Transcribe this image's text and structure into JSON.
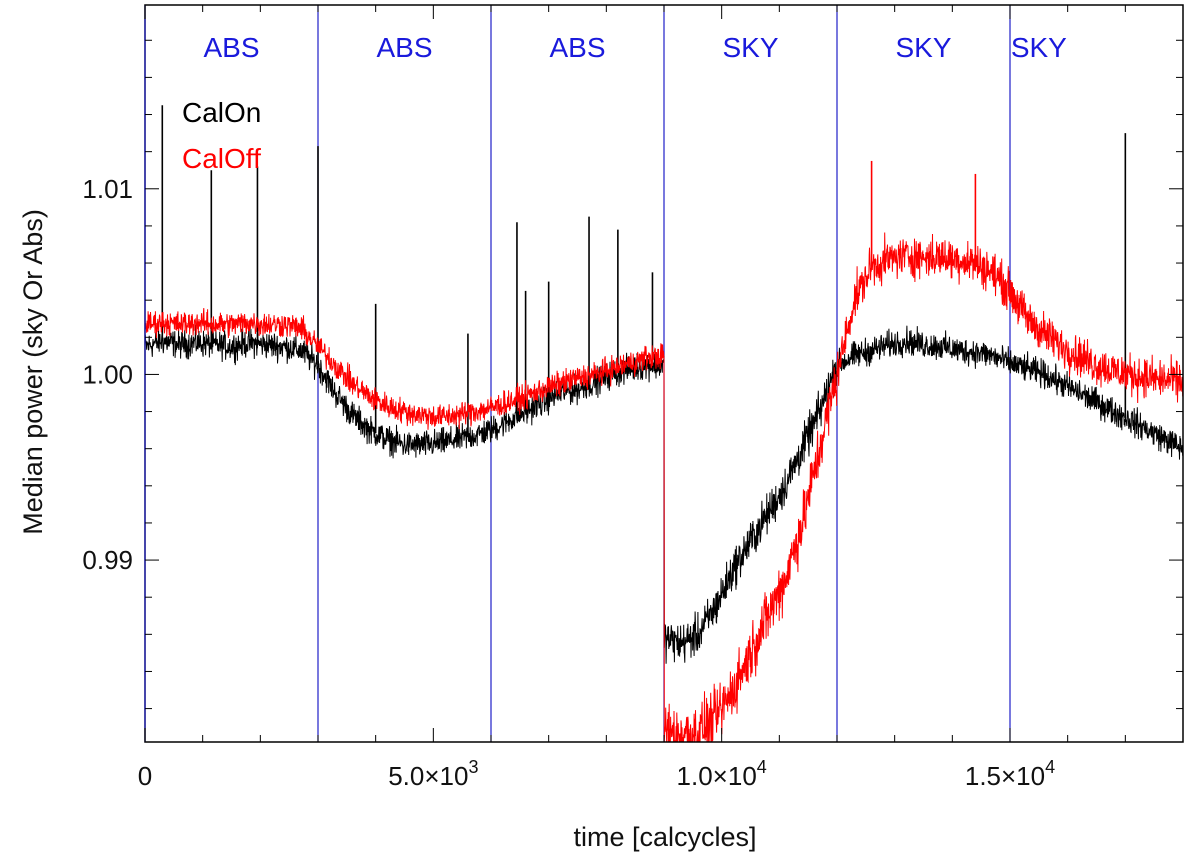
{
  "chart_data": {
    "type": "line",
    "xlabel": "time [calcycles]",
    "ylabel": "Median power (sky Or Abs)",
    "xlim": [
      0,
      18000
    ],
    "ylim": [
      0.9802,
      1.0199
    ],
    "x_ticks": [
      {
        "value": 0,
        "label": "0"
      },
      {
        "value": 5000,
        "label": "5.0×10",
        "exp": "3"
      },
      {
        "value": 10000,
        "label": "1.0×10",
        "exp": "4"
      },
      {
        "value": 15000,
        "label": "1.5×10",
        "exp": "4"
      }
    ],
    "y_ticks": [
      {
        "value": 0.99,
        "label": "0.99"
      },
      {
        "value": 1.0,
        "label": "1.00"
      },
      {
        "value": 1.01,
        "label": "1.01"
      }
    ],
    "segment_boundaries": [
      3000,
      6000,
      9000,
      12000,
      15000
    ],
    "segment_labels": [
      {
        "x": 1500,
        "text": "ABS"
      },
      {
        "x": 4500,
        "text": "ABS"
      },
      {
        "x": 7500,
        "text": "ABS"
      },
      {
        "x": 10500,
        "text": "SKY"
      },
      {
        "x": 13500,
        "text": "SKY"
      },
      {
        "x": 15500,
        "text": "SKY"
      }
    ],
    "series": [
      {
        "name": "CalOn",
        "color": "#000000",
        "x": [
          0,
          300,
          600,
          900,
          1200,
          1500,
          1800,
          2100,
          2400,
          2700,
          3000,
          3300,
          3600,
          3900,
          4200,
          4500,
          4800,
          5100,
          5400,
          5700,
          6000,
          6300,
          6600,
          6900,
          7200,
          7500,
          7800,
          8100,
          8400,
          8700,
          9000,
          9001,
          9300,
          9600,
          9900,
          10200,
          10500,
          10800,
          11100,
          11400,
          11700,
          12000,
          12300,
          12600,
          12900,
          13200,
          13500,
          13800,
          14100,
          14400,
          14700,
          15000,
          15300,
          15600,
          15900,
          16200,
          16500,
          16800,
          17100,
          17400,
          17700,
          18000
        ],
        "y": [
          1.0015,
          1.0018,
          1.0016,
          1.0017,
          1.0016,
          1.0015,
          1.0017,
          1.0016,
          1.0015,
          1.0013,
          1.0005,
          0.999,
          0.9978,
          0.997,
          0.9965,
          0.9962,
          0.9962,
          0.9963,
          0.9965,
          0.9967,
          0.997,
          0.9975,
          0.998,
          0.9985,
          0.999,
          0.9992,
          0.9996,
          1.0,
          1.0003,
          1.0005,
          1.0005,
          0.9858,
          0.9855,
          0.986,
          0.9875,
          0.9895,
          0.991,
          0.9925,
          0.994,
          0.996,
          0.998,
          1.0005,
          1.001,
          1.0013,
          1.0016,
          1.0018,
          1.0016,
          1.0015,
          1.0013,
          1.0012,
          1.001,
          1.0006,
          1.0003,
          1.0,
          0.9995,
          0.999,
          0.9985,
          0.998,
          0.9975,
          0.997,
          0.9965,
          0.996
        ],
        "spikes": [
          {
            "x": 300,
            "y": 1.0145
          },
          {
            "x": 1150,
            "y": 1.011
          },
          {
            "x": 1950,
            "y": 1.0112
          },
          {
            "x": 3000,
            "y": 1.0123
          },
          {
            "x": 4000,
            "y": 1.0038
          },
          {
            "x": 5600,
            "y": 1.0022
          },
          {
            "x": 6450,
            "y": 1.0082
          },
          {
            "x": 6600,
            "y": 1.0045
          },
          {
            "x": 7000,
            "y": 1.005
          },
          {
            "x": 7700,
            "y": 1.0085
          },
          {
            "x": 8200,
            "y": 1.0078
          },
          {
            "x": 8800,
            "y": 1.0055
          },
          {
            "x": 17000,
            "y": 1.013
          }
        ]
      },
      {
        "name": "CalOff",
        "color": "#ff0000",
        "x": [
          0,
          300,
          600,
          900,
          1200,
          1500,
          1800,
          2100,
          2400,
          2700,
          3000,
          3300,
          3600,
          3900,
          4200,
          4500,
          4800,
          5100,
          5400,
          5700,
          6000,
          6300,
          6600,
          6900,
          7200,
          7500,
          7800,
          8100,
          8400,
          8700,
          9000,
          9001,
          9300,
          9600,
          9900,
          10200,
          10500,
          10800,
          11100,
          11400,
          11700,
          12000,
          12300,
          12600,
          12900,
          13200,
          13500,
          13800,
          14100,
          14400,
          14700,
          15000,
          15300,
          15600,
          15900,
          16200,
          16500,
          16800,
          17100,
          17400,
          17700,
          18000
        ],
        "y": [
          1.0027,
          1.0028,
          1.0027,
          1.0028,
          1.0027,
          1.0027,
          1.0028,
          1.0027,
          1.0027,
          1.0025,
          1.0015,
          1.0005,
          0.9995,
          0.9988,
          0.9983,
          0.998,
          0.9978,
          0.9977,
          0.9978,
          0.998,
          0.9982,
          0.9985,
          0.9988,
          0.9992,
          0.9995,
          0.9998,
          1.0,
          1.0003,
          1.0006,
          1.0009,
          1.001,
          0.9808,
          0.9806,
          0.9808,
          0.9815,
          0.983,
          0.985,
          0.987,
          0.989,
          0.992,
          0.996,
          1.0,
          1.004,
          1.0058,
          1.0062,
          1.0064,
          1.0063,
          1.0063,
          1.0062,
          1.006,
          1.0055,
          1.0045,
          1.003,
          1.0022,
          1.0015,
          1.001,
          1.0005,
          1.0002,
          1.0,
          0.9998,
          0.9997,
          0.9996
        ],
        "spikes": [
          {
            "x": 12600,
            "y": 1.0115
          },
          {
            "x": 14400,
            "y": 1.0108
          }
        ]
      }
    ]
  }
}
